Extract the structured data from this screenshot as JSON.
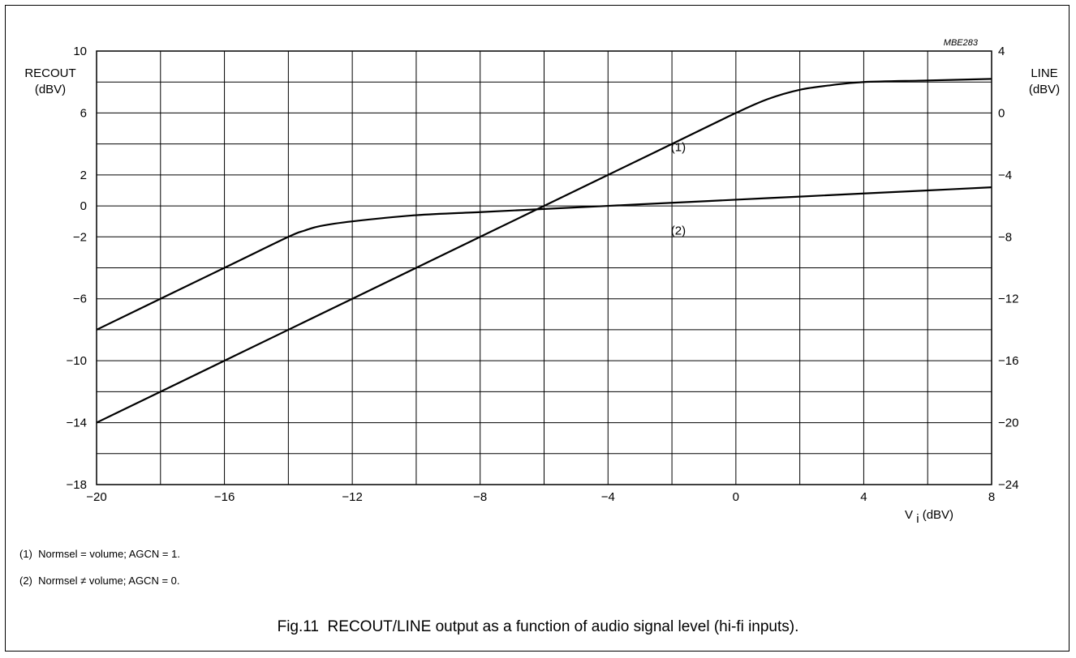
{
  "chart_data": {
    "type": "line",
    "figure_id": "MBE283",
    "caption": "Fig.11  RECOUT/LINE output as a function of audio signal level (hi-fi inputs).",
    "xlim": [
      -20,
      8
    ],
    "x_ticks": [
      -20,
      -16,
      -12,
      -8,
      -4,
      0,
      4,
      8
    ],
    "x_tick_labels": [
      "−20",
      "−16",
      "−12",
      "−8",
      "−4",
      "0",
      "4",
      "8"
    ],
    "xlabel_main": "V",
    "xlabel_sub": "i",
    "xlabel_unit": " (dBV)",
    "ylim_left": [
      -18,
      10
    ],
    "y_left_ticks": [
      10,
      6,
      2,
      0,
      -2,
      -6,
      -10,
      -14,
      -18
    ],
    "y_left_tick_labels": [
      "10",
      "6",
      "2",
      "0",
      "−2",
      "−6",
      "−10",
      "−14",
      "−18"
    ],
    "ylabel_left": [
      "RECOUT",
      "(dBV)"
    ],
    "ylim_right": [
      -24,
      4
    ],
    "y_right_ticks": [
      4,
      0,
      -4,
      -8,
      -12,
      -16,
      -20,
      -24
    ],
    "y_right_tick_labels": [
      "4",
      "0",
      "−4",
      "−8",
      "−12",
      "−16",
      "−20",
      "−24"
    ],
    "ylabel_right": [
      "LINE",
      "(dBV)"
    ],
    "grid": true,
    "grid_x_step": 2,
    "grid_y_step": 2,
    "series": [
      {
        "name": "(1)",
        "label_at": [
          -1.8,
          3.8
        ],
        "x": [
          -20,
          -16,
          -12,
          -8,
          -4,
          -2,
          0,
          1,
          2,
          3,
          4,
          6,
          8
        ],
        "y": [
          -14,
          -10,
          -6,
          -2,
          2,
          4,
          6,
          6.9,
          7.5,
          7.8,
          8.0,
          8.1,
          8.2
        ]
      },
      {
        "name": "(2)",
        "label_at": [
          -1.8,
          -1.6
        ],
        "x": [
          -20,
          -16,
          -14,
          -13.5,
          -13,
          -12,
          -10,
          -8,
          -6,
          -4,
          -2,
          0,
          2,
          4,
          6,
          8
        ],
        "y": [
          -8,
          -4,
          -2,
          -1.6,
          -1.3,
          -1.0,
          -0.6,
          -0.4,
          -0.2,
          0.0,
          0.2,
          0.4,
          0.6,
          0.8,
          1.0,
          1.2
        ]
      }
    ],
    "notes": [
      "(1)  Normsel = volume; AGCN = 1.",
      "(2)  Normsel ≠ volume; AGCN = 0."
    ]
  }
}
